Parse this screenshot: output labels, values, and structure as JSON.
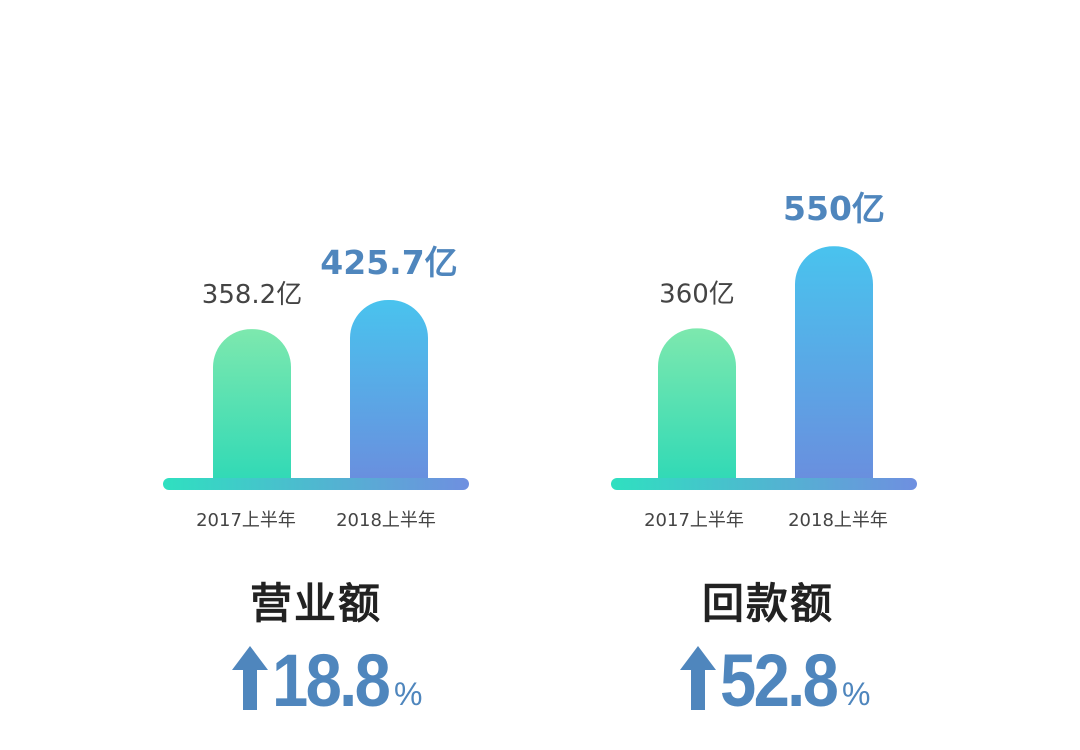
{
  "colors": {
    "accent": "#4f86bd",
    "label_text": "#444444",
    "title_text": "#222222",
    "bar_prev_top": "#7de8ae",
    "bar_prev_bottom": "#2fd9b6",
    "bar_curr_top": "#49c3ee",
    "bar_curr_bottom": "#6a8ede",
    "baseline_left": "#2fe0c0",
    "baseline_right": "#6f8fe0"
  },
  "chart_data": [
    {
      "type": "bar",
      "title": "营业额",
      "categories": [
        "2017上半年",
        "2018上半年"
      ],
      "values": [
        358.2,
        425.7
      ],
      "value_labels": [
        "358.2亿",
        "425.7亿"
      ],
      "unit": "亿",
      "growth": {
        "direction": "up",
        "value": "18.8",
        "unit": "%"
      }
    },
    {
      "type": "bar",
      "title": "回款额",
      "categories": [
        "2017上半年",
        "2018上半年"
      ],
      "values": [
        360,
        550
      ],
      "value_labels": [
        "360亿",
        "550亿"
      ],
      "unit": "亿",
      "growth": {
        "direction": "up",
        "value": "52.8",
        "unit": "%"
      }
    }
  ]
}
